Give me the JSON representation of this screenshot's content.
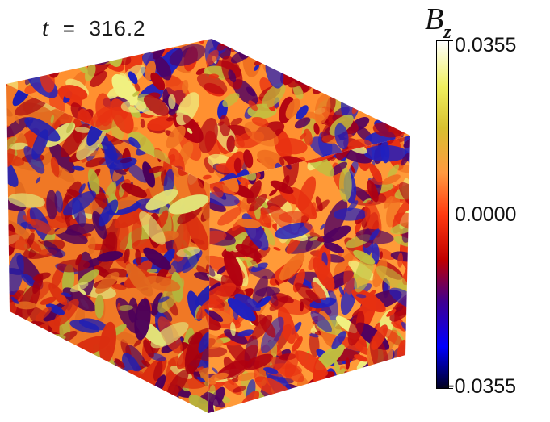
{
  "time_label": {
    "symbol": "t",
    "equals": "=",
    "value": "316.2"
  },
  "colorbar": {
    "title_main": "B",
    "title_sub": "z",
    "max_label": "0.0355",
    "mid_label": "0.0000",
    "min_label": "−0.0355",
    "stops": [
      "#ffffff",
      "#f0f060",
      "#d8c030",
      "#ff9a40",
      "#ff3a10",
      "#c00000",
      "#400090",
      "#0000ff",
      "#000020"
    ]
  },
  "cube": {
    "palette": [
      "#ffa040",
      "#f07020",
      "#e83010",
      "#b00010",
      "#500060",
      "#2020c0",
      "#c0c040",
      "#f0f080"
    ]
  }
}
